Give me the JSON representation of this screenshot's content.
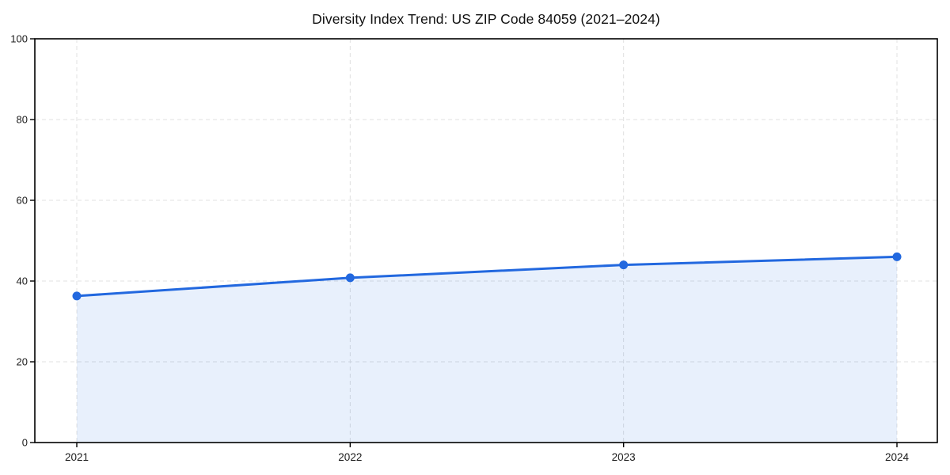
{
  "chart_data": {
    "type": "area",
    "title": "Diversity Index Trend: US ZIP Code 84059 (2021–2024)",
    "x": [
      "2021",
      "2022",
      "2023",
      "2024"
    ],
    "series": [
      {
        "name": "Diversity Index",
        "values": [
          36.3,
          40.8,
          44.0,
          46.0
        ]
      }
    ],
    "xlabel": "",
    "ylabel": "",
    "ylim": [
      0,
      100
    ],
    "yticks": [
      0,
      20,
      40,
      60,
      80,
      100
    ],
    "grid": "dashed-both-axes",
    "legend": "none",
    "marker": "circle",
    "colors": {
      "line": "#2268df",
      "marker": "#2268df",
      "fill": "rgba(34,104,223,0.10)",
      "grid": "#e0e0e0",
      "axis": "#000000",
      "tick_label": "#1c1c1c",
      "title": "#111111",
      "background": "#ffffff"
    }
  }
}
